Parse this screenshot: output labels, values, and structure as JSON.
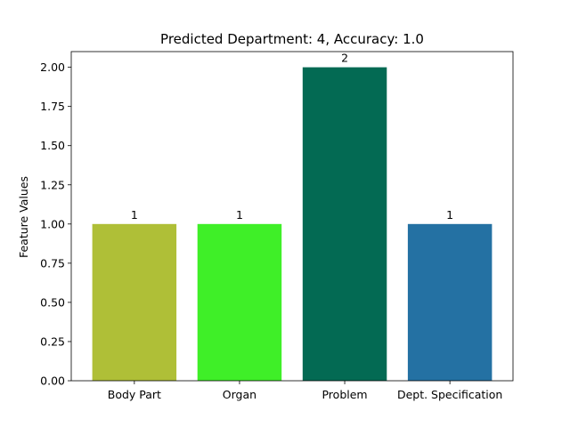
{
  "chart_data": {
    "type": "bar",
    "title": "Predicted Department: 4, Accuracy: 1.0",
    "xlabel": "",
    "ylabel": "Feature Values",
    "categories": [
      "Body Part",
      "Organ",
      "Problem",
      "Dept. Specification"
    ],
    "values": [
      1,
      1,
      2,
      1
    ],
    "data_labels": [
      "1",
      "1",
      "2",
      "1"
    ],
    "colors": [
      "#afbf37",
      "#3fef28",
      "#036a53",
      "#2471a3"
    ],
    "ylim": [
      0,
      2.1
    ],
    "yticks": [
      0.0,
      0.25,
      0.5,
      0.75,
      1.0,
      1.25,
      1.5,
      1.75,
      2.0
    ],
    "ytick_labels": [
      "0.00",
      "0.25",
      "0.50",
      "0.75",
      "1.00",
      "1.25",
      "1.50",
      "1.75",
      "2.00"
    ],
    "grid": false,
    "legend": null
  }
}
